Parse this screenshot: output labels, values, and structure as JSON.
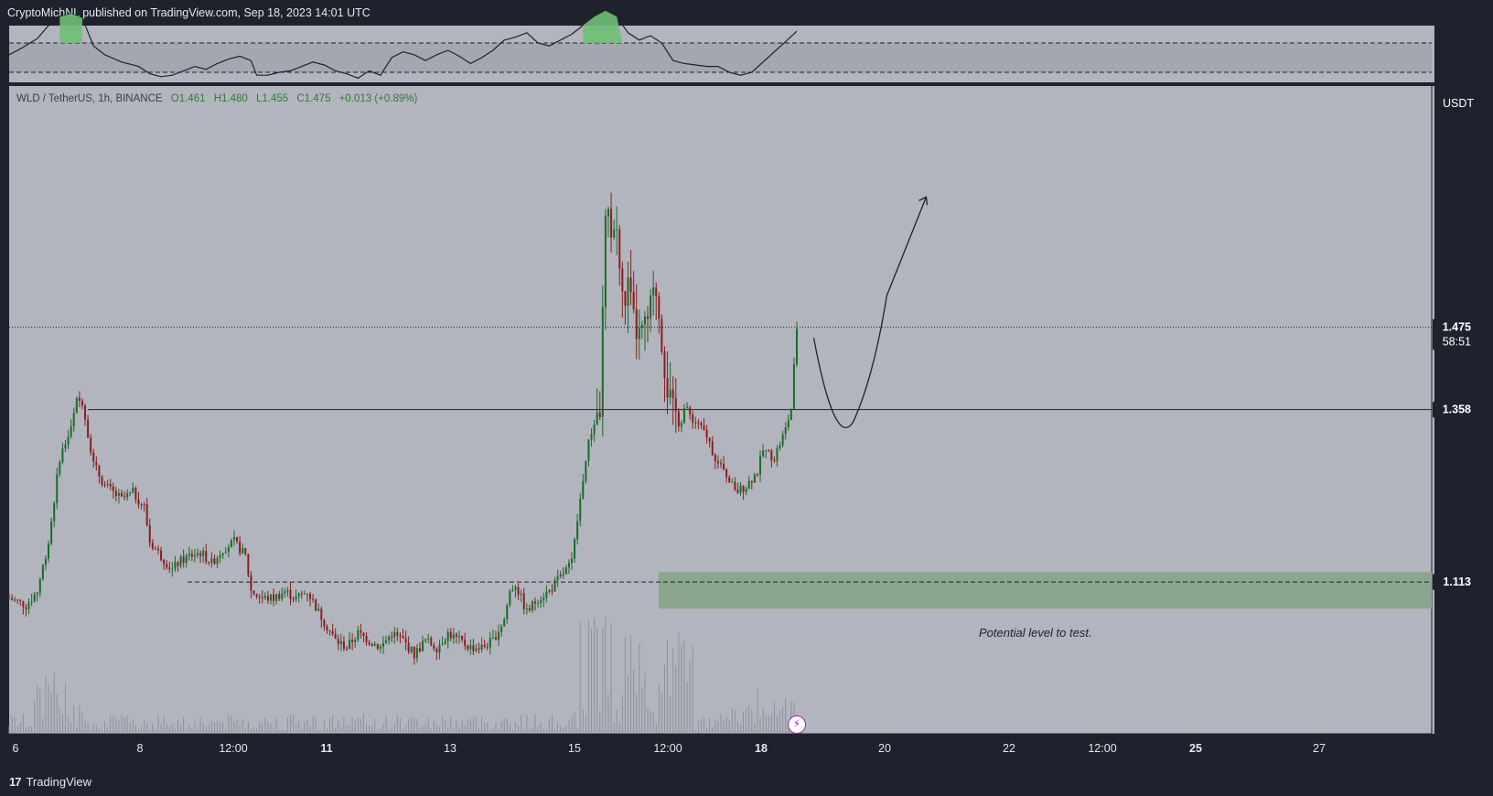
{
  "header": {
    "publisher_line": "CryptoMichNL published on TradingView.com, Sep 18, 2023 14:01 UTC"
  },
  "legend": {
    "symbol": "WLD / TetherUS, 1h, BINANCE",
    "open": "O1.461",
    "high": "H1.480",
    "low": "L1.455",
    "close": "C1.475",
    "change": "+0.013 (+0.89%)"
  },
  "currency_button": "USDT",
  "footer": {
    "brand": "TradingView"
  },
  "annotation": "Potential level to test.",
  "colors": {
    "up": "#1b6b2a",
    "down": "#8b1d1d",
    "chart_bg": "#b2b5be",
    "zone": "#8aa68d",
    "frame": "#1e222d"
  },
  "chart_data": {
    "type": "candlestick",
    "symbol": "WLD/USDT",
    "interval": "1h",
    "price_axis": {
      "ticks": [
        "1.750",
        "1.700",
        "1.650",
        "1.600",
        "1.550",
        "1.500",
        "1.450",
        "1.400",
        "1.350",
        "1.300",
        "1.250",
        "1.200",
        "1.150",
        "1.100",
        "1.050",
        "1.000",
        "0.950",
        "0.900"
      ],
      "range": [
        0.9,
        1.775
      ]
    },
    "time_axis": {
      "labels": [
        "6",
        "8",
        "12:00",
        "11",
        "13",
        "15",
        "12:00",
        "18",
        "20",
        "22",
        "12:00",
        "25",
        "27"
      ],
      "bold": [
        "11",
        "18",
        "25"
      ]
    },
    "last_price": {
      "value": "1.475",
      "countdown": "58:51"
    },
    "horizontal_levels": [
      {
        "value": 1.358,
        "label": "1.358",
        "style": "solid"
      },
      {
        "value": 1.113,
        "label": "1.113",
        "style": "dashed"
      }
    ],
    "support_zone": {
      "from": 1.075,
      "to": 1.127
    },
    "price_path": [
      [
        0,
        1.09
      ],
      [
        3,
        1.08
      ],
      [
        5,
        1.1
      ],
      [
        7,
        1.17
      ],
      [
        9,
        1.29
      ],
      [
        11,
        1.33
      ],
      [
        12,
        1.37
      ],
      [
        13,
        1.37
      ],
      [
        15,
        1.28
      ],
      [
        17,
        1.25
      ],
      [
        20,
        1.23
      ],
      [
        22,
        1.24
      ],
      [
        24,
        1.22
      ],
      [
        25,
        1.17
      ],
      [
        27,
        1.15
      ],
      [
        29,
        1.13
      ],
      [
        30,
        1.14
      ],
      [
        32,
        1.15
      ],
      [
        34,
        1.155
      ],
      [
        36,
        1.14
      ],
      [
        38,
        1.16
      ],
      [
        40,
        1.17
      ],
      [
        42,
        1.15
      ],
      [
        43,
        1.1
      ],
      [
        45,
        1.09
      ],
      [
        47,
        1.09
      ],
      [
        49,
        1.1
      ],
      [
        51,
        1.09
      ],
      [
        53,
        1.1
      ],
      [
        55,
        1.07
      ],
      [
        58,
        1.03
      ],
      [
        60,
        1.02
      ],
      [
        62,
        1.04
      ],
      [
        64,
        1.03
      ],
      [
        66,
        1.02
      ],
      [
        68,
        1.04
      ],
      [
        70,
        1.03
      ],
      [
        72,
        1.01
      ],
      [
        74,
        1.03
      ],
      [
        76,
        1.02
      ],
      [
        78,
        1.04
      ],
      [
        80,
        1.03
      ],
      [
        82,
        1.02
      ],
      [
        84,
        1.02
      ],
      [
        86,
        1.03
      ],
      [
        88,
        1.06
      ],
      [
        89,
        1.1
      ],
      [
        90,
        1.11
      ],
      [
        92,
        1.07
      ],
      [
        94,
        1.09
      ],
      [
        96,
        1.1
      ],
      [
        98,
        1.12
      ],
      [
        100,
        1.14
      ],
      [
        101,
        1.2
      ],
      [
        102,
        1.26
      ],
      [
        103,
        1.31
      ],
      [
        104,
        1.34
      ],
      [
        105,
        1.36
      ],
      [
        106,
        1.62
      ],
      [
        107,
        1.62
      ],
      [
        108,
        1.61
      ],
      [
        109,
        1.51
      ],
      [
        110,
        1.53
      ],
      [
        111,
        1.48
      ],
      [
        112,
        1.46
      ],
      [
        113,
        1.47
      ],
      [
        114,
        1.5
      ],
      [
        115,
        1.53
      ],
      [
        116,
        1.46
      ],
      [
        117,
        1.39
      ],
      [
        118,
        1.35
      ],
      [
        120,
        1.36
      ],
      [
        122,
        1.34
      ],
      [
        124,
        1.32
      ],
      [
        126,
        1.28
      ],
      [
        128,
        1.26
      ],
      [
        129,
        1.24
      ],
      [
        131,
        1.25
      ],
      [
        133,
        1.27
      ],
      [
        134,
        1.3
      ],
      [
        136,
        1.29
      ],
      [
        138,
        1.33
      ],
      [
        139,
        1.36
      ],
      [
        140,
        1.475
      ]
    ],
    "annotation_path_points": [
      [
        143,
        1.46
      ],
      [
        150,
        1.34
      ],
      [
        152,
        1.39
      ],
      [
        156,
        1.52
      ],
      [
        163,
        1.66
      ]
    ],
    "indicator_panel": {
      "level": "50.00",
      "series": [
        [
          0,
          52
        ],
        [
          2,
          56
        ],
        [
          5,
          63
        ],
        [
          7,
          72
        ],
        [
          9,
          78
        ],
        [
          11,
          80
        ],
        [
          13,
          77
        ],
        [
          15,
          58
        ],
        [
          17,
          52
        ],
        [
          20,
          47
        ],
        [
          23,
          44
        ],
        [
          25,
          39
        ],
        [
          27,
          37
        ],
        [
          29,
          38
        ],
        [
          31,
          41
        ],
        [
          33,
          44
        ],
        [
          35,
          42
        ],
        [
          37,
          46
        ],
        [
          39,
          49
        ],
        [
          41,
          51
        ],
        [
          43,
          48
        ],
        [
          44,
          38
        ],
        [
          46,
          38
        ],
        [
          48,
          40
        ],
        [
          50,
          41
        ],
        [
          52,
          44
        ],
        [
          54,
          47
        ],
        [
          56,
          45
        ],
        [
          58,
          41
        ],
        [
          60,
          39
        ],
        [
          62,
          36
        ],
        [
          64,
          41
        ],
        [
          66,
          38
        ],
        [
          68,
          50
        ],
        [
          70,
          54
        ],
        [
          72,
          52
        ],
        [
          74,
          48
        ],
        [
          76,
          52
        ],
        [
          78,
          55
        ],
        [
          80,
          51
        ],
        [
          82,
          46
        ],
        [
          84,
          50
        ],
        [
          86,
          55
        ],
        [
          88,
          62
        ],
        [
          90,
          64
        ],
        [
          92,
          67
        ],
        [
          94,
          60
        ],
        [
          96,
          58
        ],
        [
          98,
          62
        ],
        [
          100,
          66
        ],
        [
          102,
          72
        ],
        [
          104,
          78
        ],
        [
          106,
          82
        ],
        [
          108,
          78
        ],
        [
          110,
          67
        ],
        [
          112,
          62
        ],
        [
          114,
          65
        ],
        [
          116,
          60
        ],
        [
          118,
          48
        ],
        [
          120,
          46
        ],
        [
          122,
          45
        ],
        [
          124,
          44
        ],
        [
          126,
          44
        ],
        [
          128,
          40
        ],
        [
          130,
          38
        ],
        [
          132,
          40
        ],
        [
          134,
          47
        ],
        [
          136,
          54
        ],
        [
          138,
          61
        ],
        [
          140,
          68
        ]
      ]
    }
  }
}
